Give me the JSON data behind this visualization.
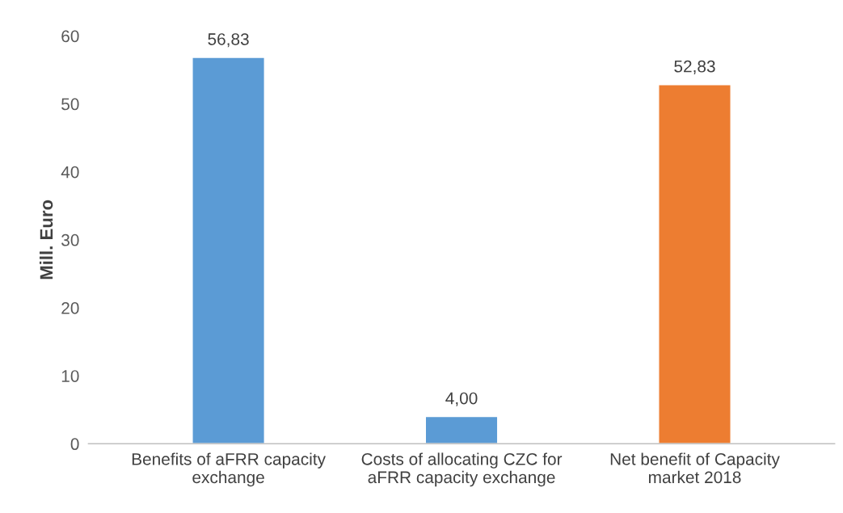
{
  "chart_data": {
    "type": "bar",
    "ylabel": "Mill. Euro",
    "categories": [
      "Benefits of aFRR capacity exchange",
      "Costs of allocating CZC for aFRR capacity exchange",
      "Net benefit of Capacity market 2018"
    ],
    "values": [
      56.83,
      4.0,
      52.83
    ],
    "colors": [
      "#5b9bd5",
      "#5b9bd5",
      "#ed7d31"
    ],
    "value_labels": [
      "56,83",
      "4,00",
      "52,83"
    ],
    "ylim": [
      0,
      60
    ],
    "yticks": [
      0,
      10,
      20,
      30,
      40,
      50,
      60
    ],
    "grid": false,
    "legend": false
  }
}
